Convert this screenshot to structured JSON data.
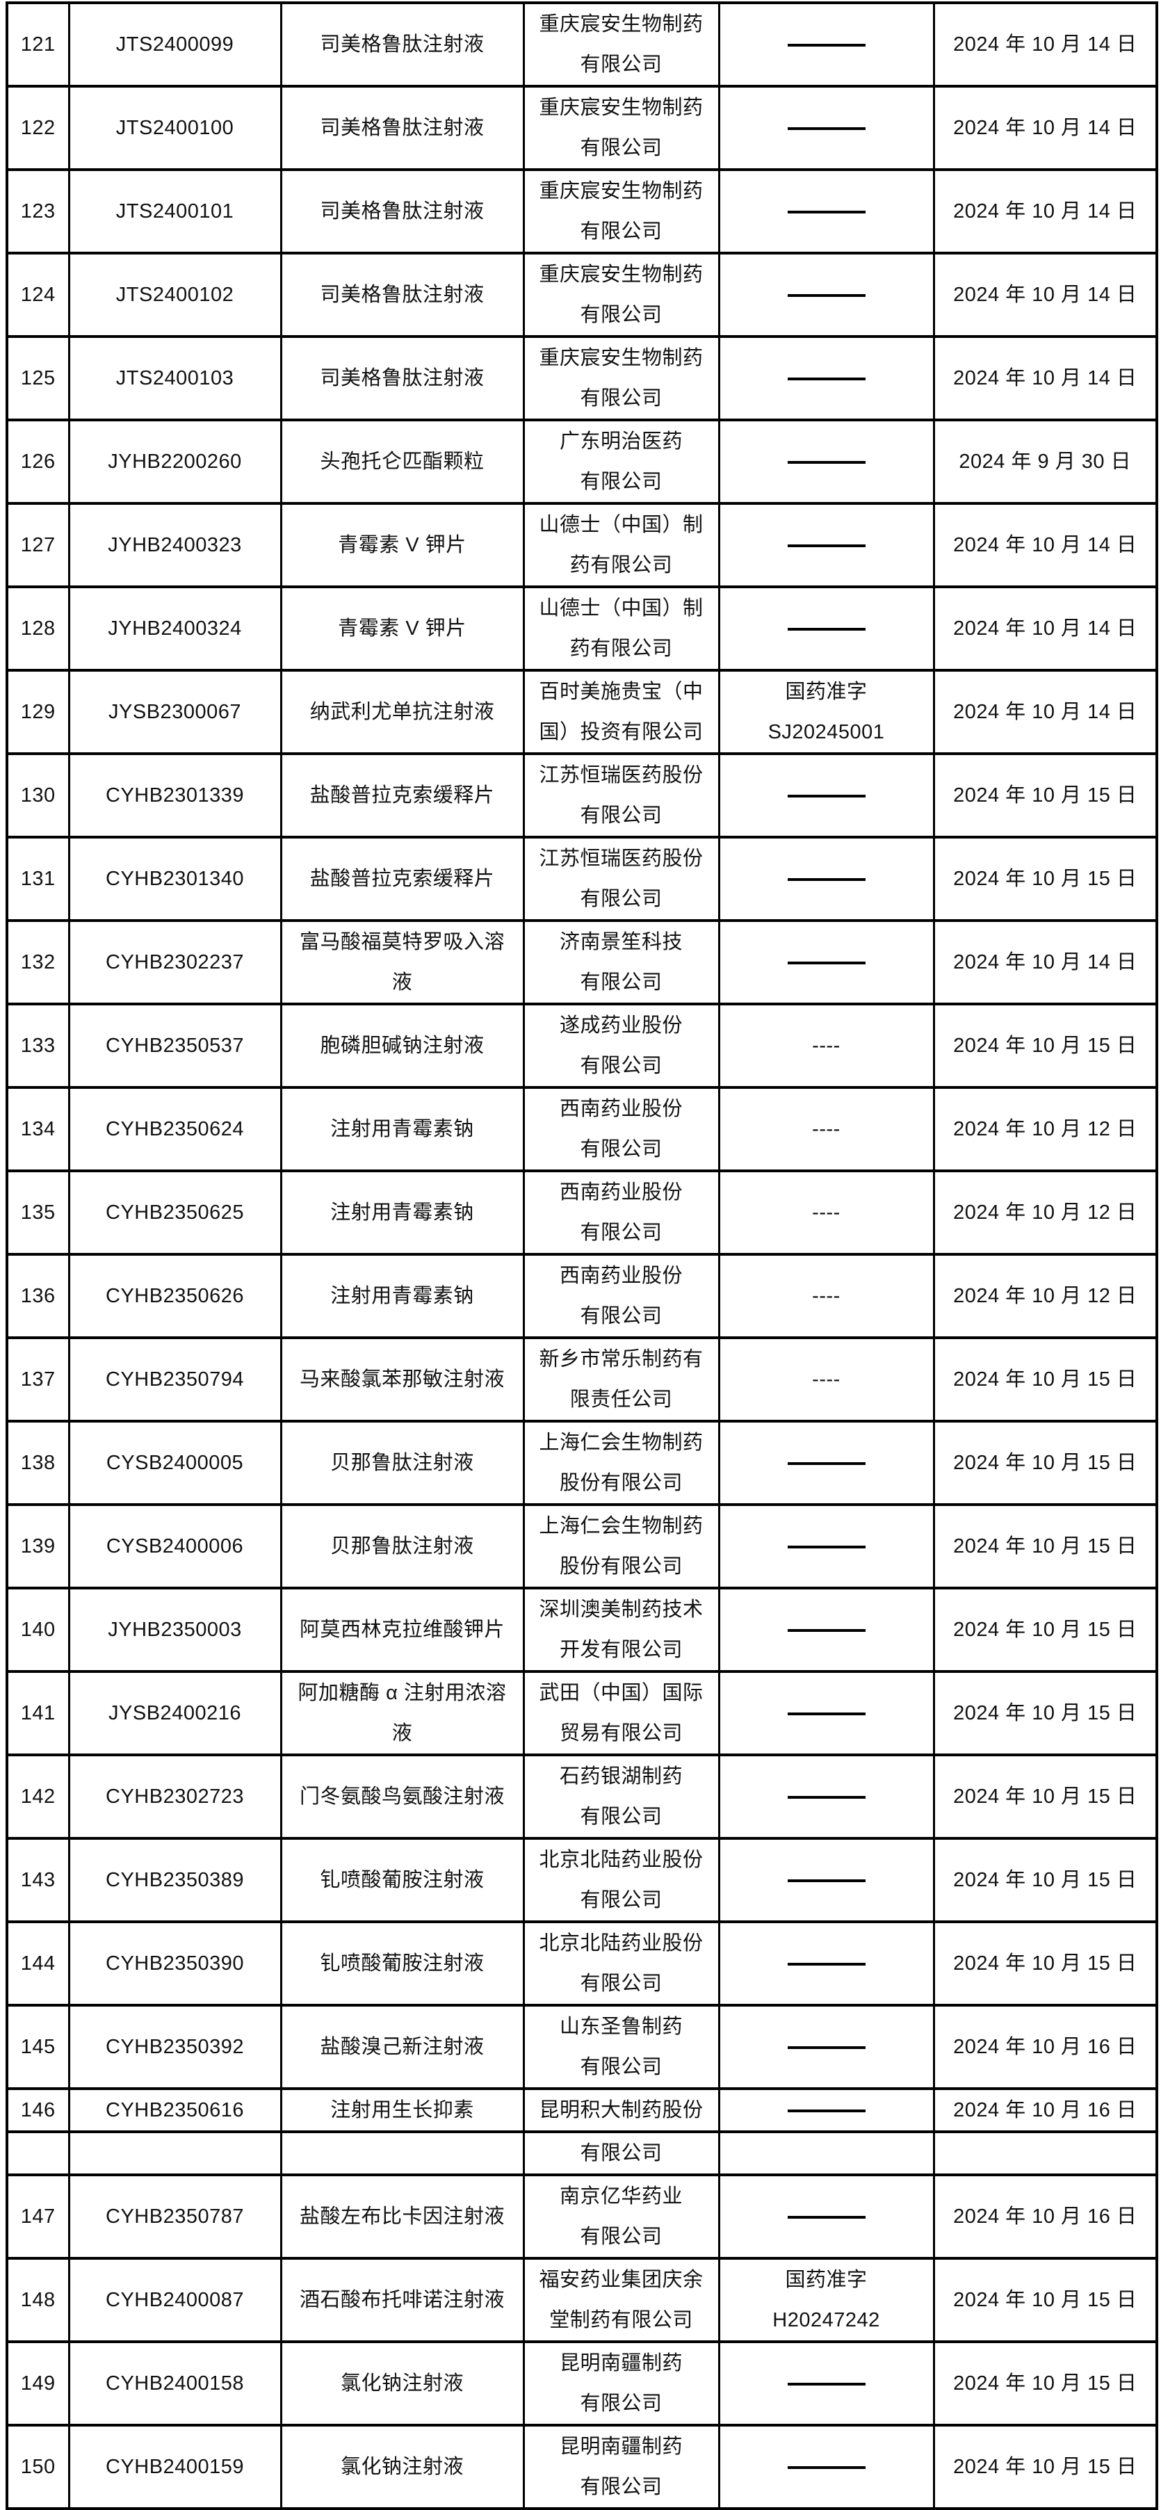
{
  "colors": {
    "border": "#000000",
    "text": "#111111",
    "background": "#ffffff"
  },
  "table": {
    "description": "drug approval list rows 121-150",
    "columns": [
      "serial",
      "acceptance-number",
      "drug-name",
      "company",
      "approval-number",
      "approval-date"
    ],
    "rows": [
      {
        "no": "121",
        "code": "JTS2400099",
        "drug": [
          "司美格鲁肽注射液"
        ],
        "company": [
          "重庆宸安生物制药",
          "有限公司"
        ],
        "approval": "——",
        "date": "2024 年 10 月 14 日"
      },
      {
        "no": "122",
        "code": "JTS2400100",
        "drug": [
          "司美格鲁肽注射液"
        ],
        "company": [
          "重庆宸安生物制药",
          "有限公司"
        ],
        "approval": "——",
        "date": "2024 年 10 月 14 日"
      },
      {
        "no": "123",
        "code": "JTS2400101",
        "drug": [
          "司美格鲁肽注射液"
        ],
        "company": [
          "重庆宸安生物制药",
          "有限公司"
        ],
        "approval": "——",
        "date": "2024 年 10 月 14 日"
      },
      {
        "no": "124",
        "code": "JTS2400102",
        "drug": [
          "司美格鲁肽注射液"
        ],
        "company": [
          "重庆宸安生物制药",
          "有限公司"
        ],
        "approval": "——",
        "date": "2024 年 10 月 14 日"
      },
      {
        "no": "125",
        "code": "JTS2400103",
        "drug": [
          "司美格鲁肽注射液"
        ],
        "company": [
          "重庆宸安生物制药",
          "有限公司"
        ],
        "approval": "——",
        "date": "2024 年 10 月 14 日"
      },
      {
        "no": "126",
        "code": "JYHB2200260",
        "drug": [
          "头孢托仑匹酯颗粒"
        ],
        "company": [
          "广东明治医药",
          "有限公司"
        ],
        "approval": "——",
        "date": "2024 年 9 月 30 日"
      },
      {
        "no": "127",
        "code": "JYHB2400323",
        "drug": [
          "青霉素 V 钾片"
        ],
        "company": [
          "山德士（中国）制",
          "药有限公司"
        ],
        "approval": "——",
        "date": "2024 年 10 月 14 日"
      },
      {
        "no": "128",
        "code": "JYHB2400324",
        "drug": [
          "青霉素 V 钾片"
        ],
        "company": [
          "山德士（中国）制",
          "药有限公司"
        ],
        "approval": "——",
        "date": "2024 年 10 月 14 日"
      },
      {
        "no": "129",
        "code": "JYSB2300067",
        "drug": [
          "纳武利尤单抗注射液"
        ],
        "company": [
          "百时美施贵宝（中",
          "国）投资有限公司"
        ],
        "approval": [
          "国药准字",
          "SJ20245001"
        ],
        "date": "2024 年 10 月 14 日"
      },
      {
        "no": "130",
        "code": "CYHB2301339",
        "drug": [
          "盐酸普拉克索缓释片"
        ],
        "company": [
          "江苏恒瑞医药股份",
          "有限公司"
        ],
        "approval": "——",
        "date": "2024 年 10 月 15 日"
      },
      {
        "no": "131",
        "code": "CYHB2301340",
        "drug": [
          "盐酸普拉克索缓释片"
        ],
        "company": [
          "江苏恒瑞医药股份",
          "有限公司"
        ],
        "approval": "——",
        "date": "2024 年 10 月 15 日"
      },
      {
        "no": "132",
        "code": "CYHB2302237",
        "drug": [
          "富马酸福莫特罗吸入溶",
          "液"
        ],
        "company": [
          "济南景笙科技",
          "有限公司"
        ],
        "approval": "——",
        "date": "2024 年 10 月 14 日"
      },
      {
        "no": "133",
        "code": "CYHB2350537",
        "drug": [
          "胞磷胆碱钠注射液"
        ],
        "company": [
          "遂成药业股份",
          "有限公司"
        ],
        "approval": "----",
        "date": "2024 年 10 月 15 日"
      },
      {
        "no": "134",
        "code": "CYHB2350624",
        "drug": [
          "注射用青霉素钠"
        ],
        "company": [
          "西南药业股份",
          "有限公司"
        ],
        "approval": "----",
        "date": "2024 年 10 月 12 日"
      },
      {
        "no": "135",
        "code": "CYHB2350625",
        "drug": [
          "注射用青霉素钠"
        ],
        "company": [
          "西南药业股份",
          "有限公司"
        ],
        "approval": "----",
        "date": "2024 年 10 月 12 日"
      },
      {
        "no": "136",
        "code": "CYHB2350626",
        "drug": [
          "注射用青霉素钠"
        ],
        "company": [
          "西南药业股份",
          "有限公司"
        ],
        "approval": "----",
        "date": "2024 年 10 月 12 日"
      },
      {
        "no": "137",
        "code": "CYHB2350794",
        "drug": [
          "马来酸氯苯那敏注射液"
        ],
        "company": [
          "新乡市常乐制药有",
          "限责任公司"
        ],
        "approval": "----",
        "date": "2024 年 10 月 15 日"
      },
      {
        "no": "138",
        "code": "CYSB2400005",
        "drug": [
          "贝那鲁肽注射液"
        ],
        "company": [
          "上海仁会生物制药",
          "股份有限公司"
        ],
        "approval": "——",
        "date": "2024 年 10 月 15 日"
      },
      {
        "no": "139",
        "code": "CYSB2400006",
        "drug": [
          "贝那鲁肽注射液"
        ],
        "company": [
          "上海仁会生物制药",
          "股份有限公司"
        ],
        "approval": "——",
        "date": "2024 年 10 月 15 日"
      },
      {
        "no": "140",
        "code": "JYHB2350003",
        "drug": [
          "阿莫西林克拉维酸钾片"
        ],
        "company": [
          "深圳澳美制药技术",
          "开发有限公司"
        ],
        "approval": "——",
        "date": "2024 年 10 月 15 日"
      },
      {
        "no": "141",
        "code": "JYSB2400216",
        "drug": [
          "阿加糖酶 α 注射用浓溶",
          "液"
        ],
        "company": [
          "武田（中国）国际",
          "贸易有限公司"
        ],
        "approval": "——",
        "date": "2024 年 10 月 15 日"
      },
      {
        "no": "142",
        "code": "CYHB2302723",
        "drug": [
          "门冬氨酸鸟氨酸注射液"
        ],
        "company": [
          "石药银湖制药",
          "有限公司"
        ],
        "approval": "——",
        "date": "2024 年 10 月 15 日"
      },
      {
        "no": "143",
        "code": "CYHB2350389",
        "drug": [
          "钆喷酸葡胺注射液"
        ],
        "company": [
          "北京北陆药业股份",
          "有限公司"
        ],
        "approval": "——",
        "date": "2024 年 10 月 15 日"
      },
      {
        "no": "144",
        "code": "CYHB2350390",
        "drug": [
          "钆喷酸葡胺注射液"
        ],
        "company": [
          "北京北陆药业股份",
          "有限公司"
        ],
        "approval": "——",
        "date": "2024 年 10 月 15 日"
      },
      {
        "no": "145",
        "code": "CYHB2350392",
        "drug": [
          "盐酸溴己新注射液"
        ],
        "company": [
          "山东圣鲁制药",
          "有限公司"
        ],
        "approval": "——",
        "date": "2024 年 10 月 16 日"
      },
      {
        "no": "146",
        "code": "CYHB2350616",
        "drug": [
          "注射用生长抑素"
        ],
        "company": [
          "昆明积大制药股份"
        ],
        "approval": "——",
        "date": "2024 年 10 月 16 日",
        "compact": true
      },
      {
        "no": "",
        "code": "",
        "drug": [],
        "company": [
          "有限公司"
        ],
        "approval": "",
        "date": "",
        "compact": true
      },
      {
        "no": "147",
        "code": "CYHB2350787",
        "drug": [
          "盐酸左布比卡因注射液"
        ],
        "company": [
          "南京亿华药业",
          "有限公司"
        ],
        "approval": "——",
        "date": "2024 年 10 月 16 日"
      },
      {
        "no": "148",
        "code": "CYHB2400087",
        "drug": [
          "酒石酸布托啡诺注射液"
        ],
        "company": [
          "福安药业集团庆余",
          "堂制药有限公司"
        ],
        "approval": [
          "国药准字",
          "H20247242"
        ],
        "date": "2024 年 10 月 15 日"
      },
      {
        "no": "149",
        "code": "CYHB2400158",
        "drug": [
          "氯化钠注射液"
        ],
        "company": [
          "昆明南疆制药",
          "有限公司"
        ],
        "approval": "——",
        "date": "2024 年 10 月 15 日"
      },
      {
        "no": "150",
        "code": "CYHB2400159",
        "drug": [
          "氯化钠注射液"
        ],
        "company": [
          "昆明南疆制药",
          "有限公司"
        ],
        "approval": "——",
        "date": "2024 年 10 月 15 日"
      }
    ]
  }
}
